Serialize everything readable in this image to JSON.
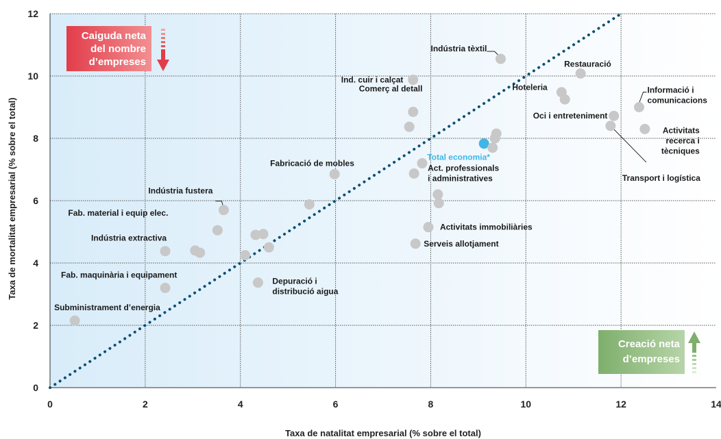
{
  "colors": {
    "point": "#c8c8c8",
    "highlight": "#3fb6e6",
    "diagonal": "#0d4f73",
    "grid": "#555555",
    "bg_light": "#e2f0fa",
    "red_box": "#e23d4a",
    "green_box": "#8db87a"
  },
  "chart_data": {
    "type": "scatter",
    "title": "",
    "xlabel": "Taxa de natalitat empresarial (% sobre el total)",
    "ylabel": "Taxa de mortalitat empresarial (% sobre el total)",
    "xlim": [
      0,
      14
    ],
    "ylim": [
      0,
      12
    ],
    "xticks": [
      "0",
      "2",
      "4",
      "6",
      "8",
      "10",
      "12",
      "14"
    ],
    "yticks": [
      "0",
      "2",
      "4",
      "6",
      "8",
      "10",
      "12"
    ],
    "grid": true,
    "reference_line": "y = x (dotted)",
    "annotation_boxes": [
      {
        "text": [
          "Caiguda neta",
          "del nombre",
          "d’empreses"
        ],
        "arrow": "down"
      },
      {
        "text": [
          "Creació neta",
          "d’empreses"
        ],
        "arrow": "up"
      }
    ],
    "points": [
      {
        "x": 0.52,
        "y": 2.15,
        "label": "Subministrament d’energia"
      },
      {
        "x": 2.42,
        "y": 3.2,
        "label": "Fab. maquinària i equipament"
      },
      {
        "x": 2.42,
        "y": 4.38,
        "label": "Indústria extractiva"
      },
      {
        "x": 3.05,
        "y": 4.4,
        "label": ""
      },
      {
        "x": 3.15,
        "y": 4.33,
        "label": ""
      },
      {
        "x": 3.52,
        "y": 5.05,
        "label": "Fab. material i equip elec."
      },
      {
        "x": 3.65,
        "y": 5.7,
        "label": "Indústria fustera"
      },
      {
        "x": 4.1,
        "y": 4.25,
        "label": ""
      },
      {
        "x": 4.32,
        "y": 4.9,
        "label": ""
      },
      {
        "x": 4.48,
        "y": 4.93,
        "label": ""
      },
      {
        "x": 4.6,
        "y": 4.5,
        "label": ""
      },
      {
        "x": 4.37,
        "y": 3.37,
        "label": "Depuració i distribució aigua"
      },
      {
        "x": 5.45,
        "y": 5.88,
        "label": ""
      },
      {
        "x": 5.98,
        "y": 6.85,
        "label": "Fabricació de mobles"
      },
      {
        "x": 7.55,
        "y": 8.37,
        "label": ""
      },
      {
        "x": 7.63,
        "y": 8.85,
        "label": "Comerç al detall"
      },
      {
        "x": 7.63,
        "y": 9.88,
        "label": "Ind. cuir i calçat"
      },
      {
        "x": 7.65,
        "y": 6.87,
        "label": "Act. professionals i administratives"
      },
      {
        "x": 7.82,
        "y": 7.2,
        "label": ""
      },
      {
        "x": 7.68,
        "y": 4.62,
        "label": "Serveis allotjament"
      },
      {
        "x": 7.95,
        "y": 5.15,
        "label": "Activitats immobiliàries"
      },
      {
        "x": 8.15,
        "y": 6.2,
        "label": ""
      },
      {
        "x": 8.17,
        "y": 5.92,
        "label": ""
      },
      {
        "x": 9.12,
        "y": 7.83,
        "label": "Total economia*",
        "highlight": true
      },
      {
        "x": 9.3,
        "y": 7.7,
        "label": ""
      },
      {
        "x": 9.35,
        "y": 8.0,
        "label": ""
      },
      {
        "x": 9.38,
        "y": 8.15,
        "label": ""
      },
      {
        "x": 9.47,
        "y": 10.55,
        "label": "Indústria tèxtil"
      },
      {
        "x": 10.75,
        "y": 9.48,
        "label": "Hoteleria"
      },
      {
        "x": 10.82,
        "y": 9.25,
        "label": ""
      },
      {
        "x": 11.15,
        "y": 10.08,
        "label": "Restauració"
      },
      {
        "x": 11.78,
        "y": 8.4,
        "label": "Transport i logística"
      },
      {
        "x": 11.85,
        "y": 8.72,
        "label": "Oci i entreteniment"
      },
      {
        "x": 12.38,
        "y": 9.0,
        "label": "Informació i comunicacions"
      },
      {
        "x": 12.5,
        "y": 8.3,
        "label": "Activitats recerca i tècniques"
      }
    ]
  }
}
